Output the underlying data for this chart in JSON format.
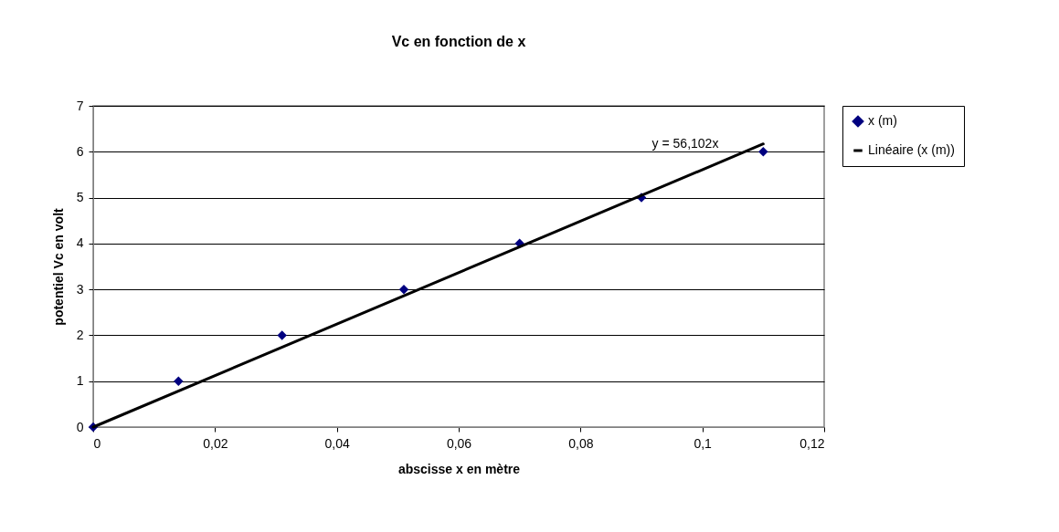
{
  "chart_data": {
    "type": "scatter",
    "title": "Vc en fonction de x",
    "xlabel": "abscisse x en mètre",
    "ylabel": "potentiel Vc en volt",
    "x": [
      0,
      0.014,
      0.031,
      0.051,
      0.07,
      0.09,
      0.11
    ],
    "series": [
      {
        "name": "x (m)",
        "color": "#000080",
        "marker": "diamond",
        "values": [
          0,
          1,
          2,
          3,
          4,
          5,
          6
        ]
      },
      {
        "name": "Linéaire (x (m))",
        "type": "line",
        "marker": "none",
        "color": "#000000",
        "x": [
          0,
          0.11
        ],
        "values": [
          0,
          6.17
        ]
      }
    ],
    "annotations": [
      "y = 56,102x"
    ],
    "xlim": [
      0,
      0.12
    ],
    "xticks": [
      0,
      {
        "value": 0.02,
        "label": "0,02"
      },
      {
        "value": 0.04,
        "label": "0,04"
      },
      {
        "value": 0.06,
        "label": "0,06"
      },
      {
        "value": 0.08,
        "label": "0,08"
      },
      {
        "value": 0.1,
        "label": "0,1"
      },
      {
        "value": 0.12,
        "label": "0,12"
      }
    ],
    "ylim": [
      0,
      7
    ],
    "yticks": [
      0,
      1,
      2,
      3,
      4,
      5,
      6,
      7
    ],
    "grid": "y",
    "legend": "right",
    "line_style": "solid"
  }
}
